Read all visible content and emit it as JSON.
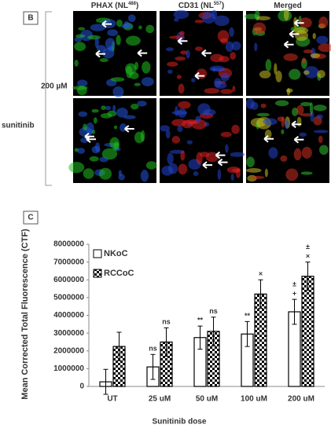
{
  "panel_b": {
    "label": "B",
    "columns": [
      {
        "text": "PHAX (NL",
        "sup": "488",
        "end": ")"
      },
      {
        "text": "CD31 (NL",
        "sup": "557",
        "end": ")"
      },
      {
        "text": "Merged"
      }
    ],
    "group": "sunitinib",
    "dose": "200 µM"
  },
  "chart_data": {
    "type": "bar",
    "panel_label": "C",
    "y_label": "Mean Corrected Total Fluorescence (CTF)",
    "x_label": "Sunitinib dose",
    "categories": [
      "UT",
      "25 uM",
      "50 uM",
      "100 uM",
      "200 uM"
    ],
    "series": [
      {
        "name": "NKoC",
        "color": "#ffffff",
        "values": [
          260000,
          1100000,
          2750000,
          2950000,
          4200000
        ],
        "errors": [
          700000,
          700000,
          650000,
          700000,
          700000
        ],
        "annotations": [
          null,
          [
            "ns"
          ],
          [
            "**"
          ],
          [
            "**"
          ],
          [
            "±",
            "+"
          ]
        ]
      },
      {
        "name": "RCCoC",
        "color": "#000000",
        "hatch": "checker",
        "values": [
          2250000,
          2500000,
          3100000,
          5200000,
          6200000
        ],
        "errors": [
          800000,
          800000,
          800000,
          800000,
          800000
        ],
        "annotations": [
          null,
          [
            "ns"
          ],
          [
            "ns"
          ],
          [
            "×"
          ],
          [
            "±",
            "×"
          ]
        ]
      }
    ],
    "ylim": [
      0,
      8000000
    ],
    "yticks": [
      0,
      1000000,
      2000000,
      3000000,
      4000000,
      5000000,
      6000000,
      7000000,
      8000000
    ],
    "legend": "top-left",
    "grid": false
  }
}
